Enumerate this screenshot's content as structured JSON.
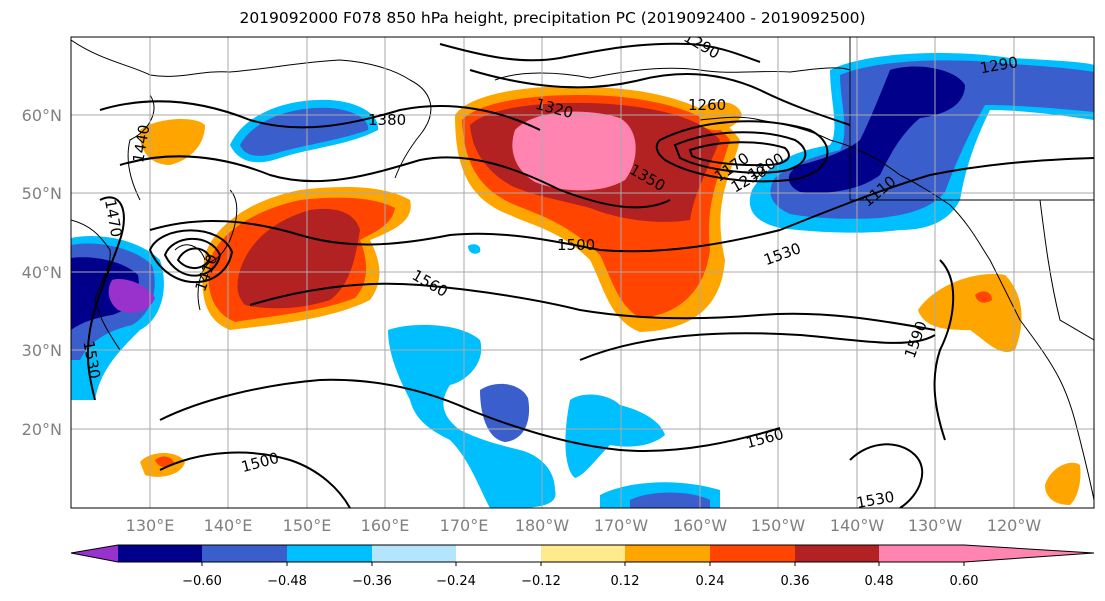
{
  "title": "2019092000 F078 850 hPa height, precipitation PC (2019092400 - 2019092500)",
  "map": {
    "lat_ticks": [
      "60°N",
      "50°N",
      "40°N",
      "30°N",
      "20°N"
    ],
    "lon_ticks": [
      "130°E",
      "140°E",
      "150°E",
      "160°E",
      "170°E",
      "180°W",
      "170°W",
      "160°W",
      "150°W",
      "140°W",
      "130°W",
      "120°W"
    ],
    "contour_labels": [
      "1290",
      "1290",
      "1260",
      "1320",
      "1380",
      "1440",
      "1470",
      "1410",
      "1350",
      "1170",
      "1200",
      "1230",
      "1110",
      "1500",
      "1530",
      "1560",
      "1590",
      "1530",
      "1560",
      "1500",
      "1530"
    ]
  },
  "colorbar": {
    "ticks": [
      "−0.60",
      "−0.48",
      "−0.36",
      "−0.24",
      "−0.12",
      "0.12",
      "0.24",
      "0.36",
      "0.48",
      "0.60"
    ],
    "colors": [
      "#9932cc",
      "#00008b",
      "#3a5fcd",
      "#00bfff",
      "#b3e5fc",
      "#ffffff",
      "#ffeb8c",
      "#ffa500",
      "#ff4500",
      "#b22222",
      "#ff85b0"
    ]
  }
}
